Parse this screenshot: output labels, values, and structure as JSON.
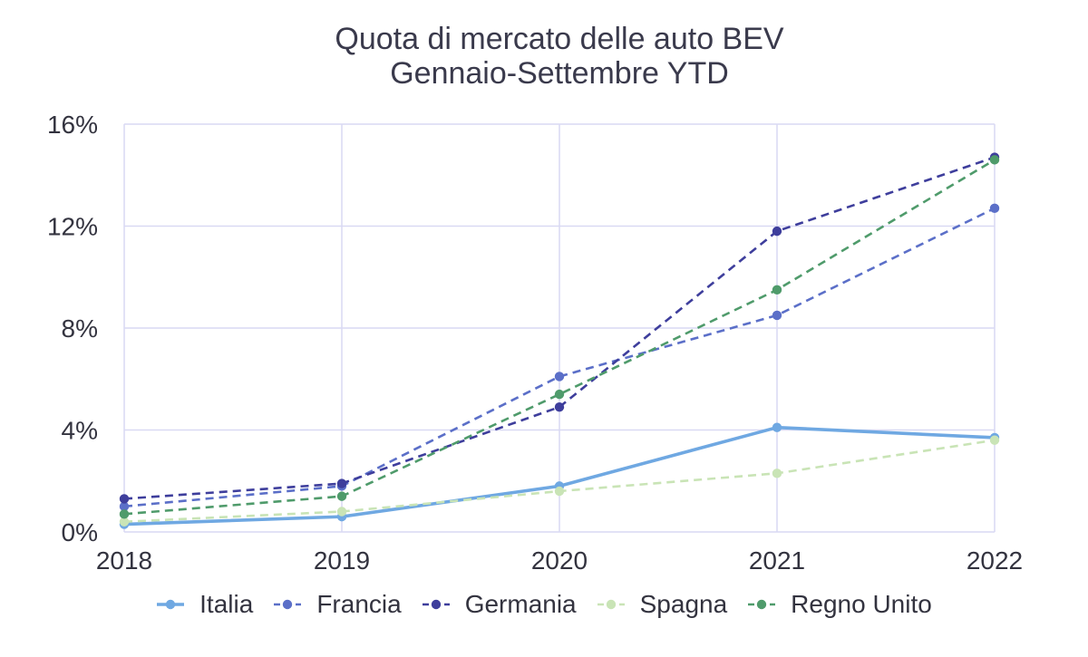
{
  "chart_data": {
    "type": "line",
    "title": "Quota di mercato delle auto BEV",
    "subtitle": "Gennaio-Settembre YTD",
    "categories": [
      "2018",
      "2019",
      "2020",
      "2021",
      "2022"
    ],
    "ylim": [
      0,
      16
    ],
    "y_ticks": [
      {
        "value": 0,
        "label": "0%"
      },
      {
        "value": 4,
        "label": "4%"
      },
      {
        "value": 8,
        "label": "8%"
      },
      {
        "value": 12,
        "label": "12%"
      },
      {
        "value": 16,
        "label": "16%"
      }
    ],
    "grid": true,
    "legend_position": "bottom",
    "series": [
      {
        "name": "Italia",
        "values": [
          0.3,
          0.6,
          1.8,
          4.1,
          3.7
        ],
        "color": "#6fa8e2",
        "line_style": "solid"
      },
      {
        "name": "Francia",
        "values": [
          1.0,
          1.8,
          6.1,
          8.5,
          12.7
        ],
        "color": "#5b6fc8",
        "line_style": "dash"
      },
      {
        "name": "Germania",
        "values": [
          1.3,
          1.9,
          4.9,
          11.8,
          14.7
        ],
        "color": "#3e3e9c",
        "line_style": "dash"
      },
      {
        "name": "Spagna",
        "values": [
          0.4,
          0.8,
          1.6,
          2.3,
          3.6
        ],
        "color": "#c9e4b6",
        "line_style": "dash"
      },
      {
        "name": "Regno Unito",
        "values": [
          0.7,
          1.4,
          5.4,
          9.5,
          14.6
        ],
        "color": "#4f9b6b",
        "line_style": "dash"
      }
    ]
  }
}
